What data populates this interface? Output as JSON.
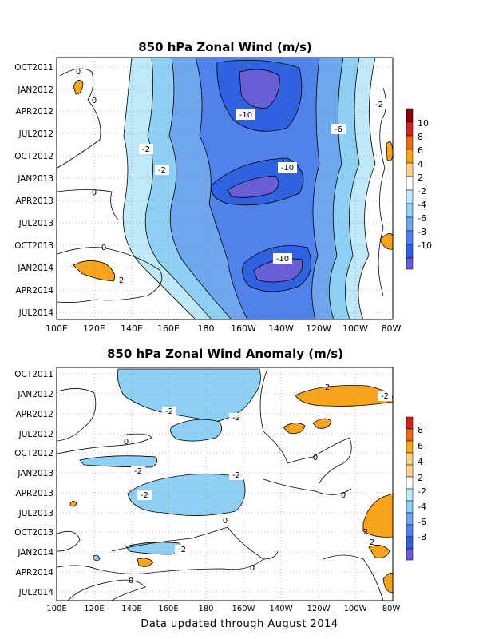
{
  "footer": "Data updated through August 2014",
  "chart_data": [
    {
      "type": "heatmap",
      "title": "850 hPa Zonal Wind (m/s)",
      "x_ticks": [
        "100E",
        "120E",
        "140E",
        "160E",
        "180",
        "160W",
        "140W",
        "120W",
        "100W",
        "80W"
      ],
      "y_ticks": [
        "OCT2011",
        "JAN2012",
        "APR2012",
        "JUL2012",
        "OCT2012",
        "JAN2013",
        "APR2013",
        "JUL2013",
        "OCT2013",
        "JAN2014",
        "APR2014",
        "JUL2014"
      ],
      "colorbar": {
        "labels": [
          "10",
          "8",
          "6",
          "4",
          "2",
          "-2",
          "-4",
          "-6",
          "-8",
          "-10"
        ],
        "colors": [
          "#8b0000",
          "#d2231d",
          "#ef6a16",
          "#f9a51c",
          "#fbd08c",
          "#ffffff",
          "#bfe8f8",
          "#8dd0f3",
          "#6fa7ee",
          "#4f82ea",
          "#2e62e0",
          "#6a5ed6"
        ]
      },
      "contour_labels": [
        "-10",
        "-10",
        "-10",
        "-6",
        "-2",
        "-2",
        "-2",
        "0",
        "0",
        "0",
        "0",
        "2"
      ]
    },
    {
      "type": "heatmap",
      "title": "850 hPa Zonal Wind Anomaly (m/s)",
      "x_ticks": [
        "100E",
        "120E",
        "140E",
        "160E",
        "180",
        "160W",
        "140W",
        "120W",
        "100W",
        "80W"
      ],
      "y_ticks": [
        "OCT2011",
        "JAN2012",
        "APR2012",
        "JUL2012",
        "OCT2012",
        "JAN2013",
        "APR2013",
        "JUL2013",
        "OCT2013",
        "JAN2014",
        "APR2014",
        "JUL2014"
      ],
      "colorbar": {
        "labels": [
          "8",
          "6",
          "4",
          "2",
          "-2",
          "-4",
          "-6",
          "-8"
        ],
        "colors": [
          "#d2231d",
          "#ef6a16",
          "#f9a51c",
          "#fbd08c",
          "#ffffff",
          "#bfe8f8",
          "#8dd0f3",
          "#6fa7ee",
          "#4f82ea",
          "#6a5ed6"
        ]
      },
      "contour_labels": [
        "-2",
        "-2",
        "-2",
        "-2",
        "-2",
        "-2",
        "-2",
        "0",
        "0",
        "0",
        "0",
        "0",
        "0",
        "2",
        "2",
        "2"
      ]
    }
  ]
}
